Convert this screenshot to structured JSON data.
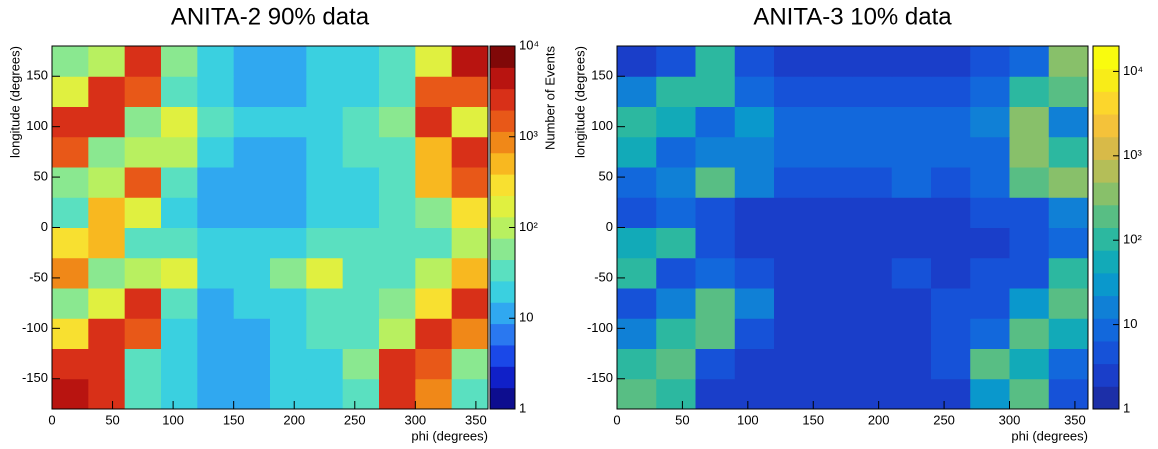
{
  "chart_data": [
    {
      "type": "heatmap",
      "title": "ANITA-2 90% data",
      "xlabel": "phi (degrees)",
      "ylabel": "longitude (degrees)",
      "zlabel": "Number of Events",
      "xbins": [
        0,
        30,
        60,
        90,
        120,
        150,
        180,
        210,
        240,
        270,
        300,
        330,
        360
      ],
      "ybins": [
        -180,
        -150,
        -120,
        -90,
        -60,
        -30,
        0,
        30,
        60,
        90,
        120,
        150,
        180
      ],
      "z": [
        [
          4000,
          2500,
          30,
          20,
          15,
          15,
          20,
          25,
          40,
          3000,
          800,
          40
        ],
        [
          2000,
          3000,
          40,
          20,
          15,
          15,
          20,
          25,
          60,
          2500,
          1500,
          50
        ],
        [
          300,
          2500,
          1500,
          25,
          15,
          15,
          20,
          30,
          40,
          100,
          2500,
          800
        ],
        [
          60,
          200,
          2500,
          40,
          15,
          20,
          20,
          30,
          40,
          50,
          300,
          2500
        ],
        [
          800,
          60,
          80,
          150,
          20,
          20,
          50,
          150,
          30,
          40,
          80,
          600
        ],
        [
          300,
          500,
          40,
          30,
          20,
          20,
          20,
          30,
          30,
          30,
          40,
          80
        ],
        [
          40,
          400,
          200,
          25,
          15,
          15,
          15,
          20,
          25,
          30,
          60,
          300
        ],
        [
          60,
          80,
          1200,
          40,
          15,
          15,
          15,
          20,
          25,
          40,
          400,
          1200
        ],
        [
          1500,
          60,
          100,
          80,
          20,
          15,
          15,
          20,
          30,
          40,
          500,
          2000
        ],
        [
          2500,
          2000,
          60,
          150,
          40,
          20,
          20,
          25,
          30,
          60,
          3000,
          150
        ],
        [
          200,
          2500,
          1500,
          40,
          20,
          15,
          15,
          20,
          25,
          40,
          1500,
          1200
        ],
        [
          60,
          100,
          3000,
          50,
          20,
          15,
          15,
          20,
          25,
          40,
          200,
          3500
        ]
      ],
      "xlim": [
        0,
        360
      ],
      "ylim": [
        -180,
        180
      ],
      "zlim": [
        1,
        10000
      ],
      "zlog": true,
      "xticks": [
        0,
        50,
        100,
        150,
        200,
        250,
        300,
        350
      ],
      "yticks": [
        -150,
        -100,
        -50,
        0,
        50,
        100,
        150
      ],
      "zticks": [
        1,
        10,
        {
          "value": 100,
          "label": "10²"
        },
        {
          "value": 1000,
          "label": "10³"
        },
        {
          "value": 10000,
          "label": "10⁴"
        }
      ],
      "colormap": [
        "#0d0d8f",
        "#1020c8",
        "#1a48e8",
        "#2a78f0",
        "#30a8f0",
        "#3ad0e0",
        "#5ae0c0",
        "#8ae890",
        "#b8f060",
        "#e0f040",
        "#f8e030",
        "#f8b820",
        "#f08818",
        "#e85818",
        "#d83018",
        "#b81410",
        "#800808"
      ]
    },
    {
      "type": "heatmap",
      "title": "ANITA-3 10% data",
      "xlabel": "phi (degrees)",
      "ylabel": "longitude (degrees)",
      "xbins": [
        0,
        30,
        60,
        90,
        120,
        150,
        180,
        210,
        240,
        270,
        300,
        330,
        360
      ],
      "ybins": [
        -180,
        -150,
        -120,
        -90,
        -60,
        -30,
        0,
        30,
        60,
        90,
        120,
        150,
        180
      ],
      "z": [
        [
          200,
          80,
          3,
          2,
          2,
          2,
          2,
          2,
          3,
          40,
          150,
          5
        ],
        [
          80,
          150,
          5,
          3,
          2,
          2,
          2,
          3,
          5,
          150,
          60,
          10
        ],
        [
          20,
          100,
          150,
          4,
          3,
          2,
          2,
          3,
          4,
          8,
          200,
          60
        ],
        [
          5,
          20,
          200,
          20,
          3,
          2,
          2,
          3,
          4,
          5,
          40,
          250
        ],
        [
          100,
          5,
          10,
          5,
          3,
          2,
          3,
          5,
          3,
          4,
          5,
          80
        ],
        [
          60,
          80,
          4,
          3,
          2,
          2,
          2,
          3,
          3,
          3,
          4,
          10
        ],
        [
          5,
          10,
          5,
          3,
          3,
          3,
          3,
          3,
          3,
          4,
          4,
          20
        ],
        [
          8,
          15,
          150,
          20,
          5,
          5,
          6,
          8,
          6,
          8,
          150,
          300
        ],
        [
          60,
          10,
          15,
          20,
          8,
          8,
          8,
          8,
          8,
          10,
          300,
          80
        ],
        [
          100,
          60,
          10,
          30,
          10,
          8,
          8,
          8,
          10,
          15,
          300,
          20
        ],
        [
          15,
          100,
          80,
          10,
          5,
          5,
          5,
          5,
          6,
          10,
          80,
          200
        ],
        [
          3,
          5,
          100,
          5,
          3,
          2,
          2,
          3,
          3,
          5,
          10,
          300
        ]
      ],
      "xlim": [
        0,
        360
      ],
      "ylim": [
        -180,
        180
      ],
      "zlim": [
        1,
        20000
      ],
      "zlog": true,
      "xticks": [
        0,
        50,
        100,
        150,
        200,
        250,
        300,
        350
      ],
      "yticks": [
        -150,
        -100,
        -50,
        0,
        50,
        100,
        150
      ],
      "zticks": [
        1,
        10,
        {
          "value": 100,
          "label": "10²"
        },
        {
          "value": 1000,
          "label": "10³"
        },
        {
          "value": 10000,
          "label": "10⁴"
        }
      ],
      "colormap": [
        "#1c2fa8",
        "#1a3ec9",
        "#1652d8",
        "#1268dc",
        "#1080d6",
        "#0a98cc",
        "#12aab8",
        "#2cb8a0",
        "#58be84",
        "#88c06a",
        "#b4be58",
        "#d8ba48",
        "#f4c23a",
        "#fcd62c",
        "#f8ec18",
        "#f9fb0e"
      ]
    }
  ]
}
